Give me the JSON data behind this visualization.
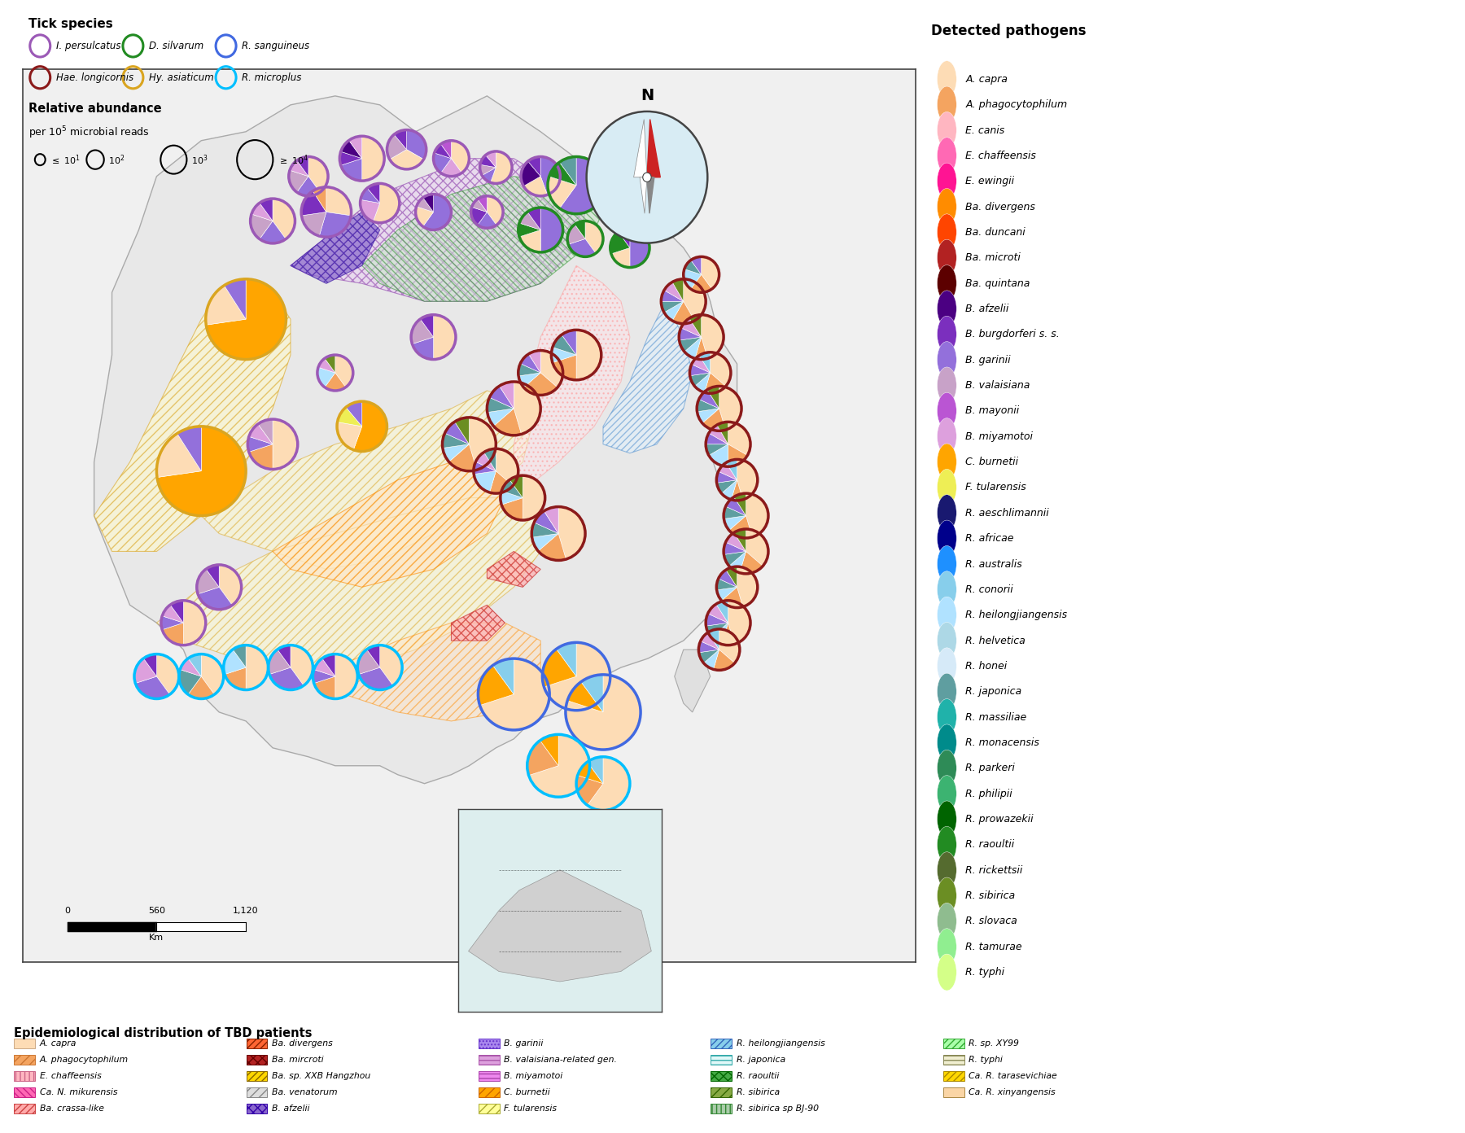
{
  "figsize": [
    17.84,
    13.86
  ],
  "dpi": 100,
  "tick_species": [
    {
      "name": "I. persulcatus",
      "color": "#9B59B6"
    },
    {
      "name": "Hae. longicornis",
      "color": "#8B1A1A"
    },
    {
      "name": "D. silvarum",
      "color": "#228B22"
    },
    {
      "name": "Hy. asiaticum",
      "color": "#DAA520"
    },
    {
      "name": "R. sanguineus",
      "color": "#4169E1"
    },
    {
      "name": "R. microplus",
      "color": "#00BFFF"
    }
  ],
  "detected_pathogens": [
    {
      "name": "A. capra",
      "color": "#FDDCB5"
    },
    {
      "name": "A. phagocytophilum",
      "color": "#F4A460"
    },
    {
      "name": "E. canis",
      "color": "#FFB6C1"
    },
    {
      "name": "E. chaffeensis",
      "color": "#FF69B4"
    },
    {
      "name": "E. ewingii",
      "color": "#FF1493"
    },
    {
      "name": "Ba. divergens",
      "color": "#FF8C00"
    },
    {
      "name": "Ba. duncani",
      "color": "#FF4500"
    },
    {
      "name": "Ba. microti",
      "color": "#B22222"
    },
    {
      "name": "Ba. quintana",
      "color": "#5C0000"
    },
    {
      "name": "B. afzelii",
      "color": "#4B0082"
    },
    {
      "name": "B. burgdorferi s. s.",
      "color": "#7B2FBE"
    },
    {
      "name": "B. garinii",
      "color": "#9370DB"
    },
    {
      "name": "B. valaisiana",
      "color": "#C8A2C8"
    },
    {
      "name": "B. mayonii",
      "color": "#BA55D3"
    },
    {
      "name": "B. miyamotoi",
      "color": "#DDA0DD"
    },
    {
      "name": "C. burnetii",
      "color": "#FFA500"
    },
    {
      "name": "F. tularensis",
      "color": "#EEEE55"
    },
    {
      "name": "R. aeschlimannii",
      "color": "#191970"
    },
    {
      "name": "R. africae",
      "color": "#00008B"
    },
    {
      "name": "R. australis",
      "color": "#1E90FF"
    },
    {
      "name": "R. conorii",
      "color": "#87CEEB"
    },
    {
      "name": "R. heilongjiangensis",
      "color": "#B0E2FF"
    },
    {
      "name": "R. helvetica",
      "color": "#ADD8E6"
    },
    {
      "name": "R. honei",
      "color": "#D6EAF8"
    },
    {
      "name": "R. japonica",
      "color": "#5F9EA0"
    },
    {
      "name": "R. massiliae",
      "color": "#20B2AA"
    },
    {
      "name": "R. monacensis",
      "color": "#008B8B"
    },
    {
      "name": "R. parkeri",
      "color": "#2E8B57"
    },
    {
      "name": "R. philipii",
      "color": "#3CB371"
    },
    {
      "name": "R. prowazekii",
      "color": "#006400"
    },
    {
      "name": "R. raoultii",
      "color": "#228B22"
    },
    {
      "name": "R. rickettsii",
      "color": "#556B2F"
    },
    {
      "name": "R. sibirica",
      "color": "#6B8E23"
    },
    {
      "name": "R. slovaca",
      "color": "#8FBC8F"
    },
    {
      "name": "R. tamurae",
      "color": "#90EE90"
    },
    {
      "name": "R. typhi",
      "color": "#D4FF88"
    }
  ],
  "epi_entries": [
    {
      "name": "A. capra",
      "fc": "#FDDCB5",
      "ec": "#CCAA88",
      "hatch": ""
    },
    {
      "name": "A. phagocytophilum",
      "fc": "#F4A460",
      "ec": "#CC7733",
      "hatch": "///"
    },
    {
      "name": "E. chaffeensis",
      "fc": "#FFB6C1",
      "ec": "#CC6688",
      "hatch": "|||"
    },
    {
      "name": "Ca. N. mikurensis",
      "fc": "#FF69B4",
      "ec": "#CC2288",
      "hatch": "\\\\\\\\"
    },
    {
      "name": "Ba. crassa-like",
      "fc": "#FFAAAA",
      "ec": "#CC4444",
      "hatch": "////"
    },
    {
      "name": "Ba. divergens",
      "fc": "#FF6633",
      "ec": "#882200",
      "hatch": "////"
    },
    {
      "name": "Ba. mircroti",
      "fc": "#B22222",
      "ec": "#660000",
      "hatch": "xxx"
    },
    {
      "name": "Ba. sp. XXB Hangzhou",
      "fc": "#FFD700",
      "ec": "#886600",
      "hatch": "////"
    },
    {
      "name": "Ba. venatorum",
      "fc": "#DDDDDD",
      "ec": "#888888",
      "hatch": "///"
    },
    {
      "name": "B. afzelii",
      "fc": "#8866CC",
      "ec": "#3300AA",
      "hatch": "xxx"
    },
    {
      "name": "B. garinii",
      "fc": "#AA88EE",
      "ec": "#6633CC",
      "hatch": "...."
    },
    {
      "name": "B. valaisiana-related gen.",
      "fc": "#DDA0DD",
      "ec": "#AA55AA",
      "hatch": "---"
    },
    {
      "name": "B. miyamotoi",
      "fc": "#EE88EE",
      "ec": "#AA44AA",
      "hatch": "---"
    },
    {
      "name": "C. burnetii",
      "fc": "#FFA500",
      "ec": "#CC6600",
      "hatch": "///"
    },
    {
      "name": "F. tularensis",
      "fc": "#FFFF99",
      "ec": "#AAAA33",
      "hatch": "///"
    },
    {
      "name": "R. heilongjiangensis",
      "fc": "#87CEEB",
      "ec": "#3366BB",
      "hatch": "////"
    },
    {
      "name": "R. japonica",
      "fc": "#E0F8F8",
      "ec": "#33AAAA",
      "hatch": "---"
    },
    {
      "name": "R. raoultii",
      "fc": "#44AA44",
      "ec": "#006600",
      "hatch": "xxx"
    },
    {
      "name": "R. sibirica",
      "fc": "#88AA44",
      "ec": "#336600",
      "hatch": "///"
    },
    {
      "name": "R. sibirica sp BJ-90",
      "fc": "#AACCAA",
      "ec": "#338833",
      "hatch": "|||"
    },
    {
      "name": "R. sp. XY99",
      "fc": "#AAFFAA",
      "ec": "#33AA33",
      "hatch": "////"
    },
    {
      "name": "R. typhi",
      "fc": "#F0EED0",
      "ec": "#888855",
      "hatch": "---"
    },
    {
      "name": "Ca. R. tarasevichiae",
      "fc": "#FFD700",
      "ec": "#AA8800",
      "hatch": "////"
    },
    {
      "name": "Ca. R. xinyangensis",
      "fc": "#FAD5A5",
      "ec": "#AA8844",
      "hatch": ""
    }
  ],
  "map_border": "#444444",
  "map_bg": "#EEEEEE",
  "inset_bg": "#DDEEEE"
}
